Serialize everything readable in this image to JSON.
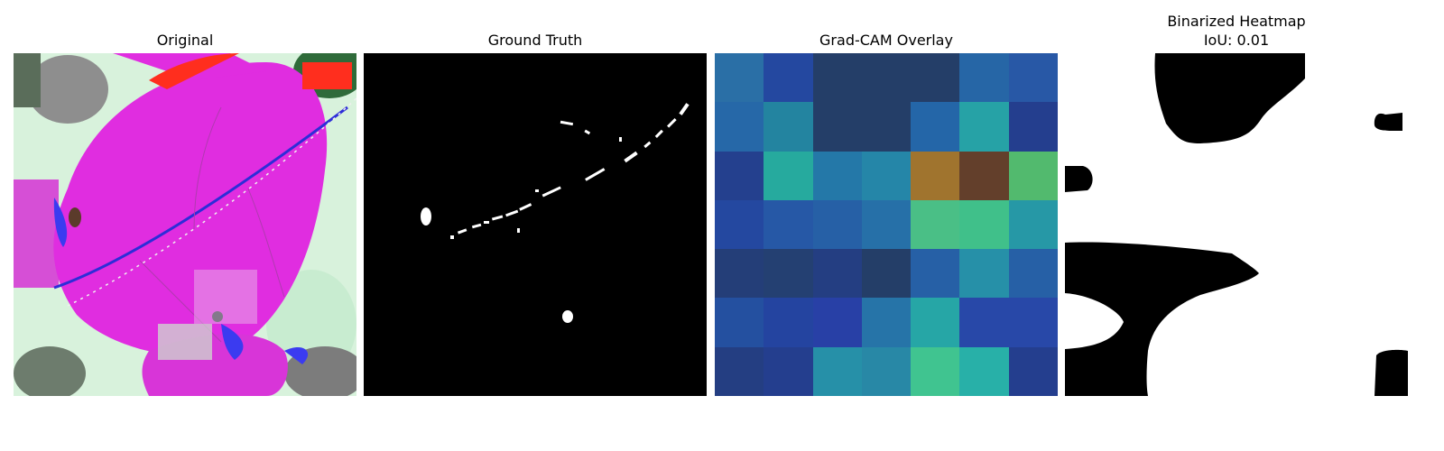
{
  "panels": [
    {
      "title": "Original",
      "subtitle": ""
    },
    {
      "title": "Ground Truth",
      "subtitle": ""
    },
    {
      "title": "Grad-CAM Overlay",
      "subtitle": ""
    },
    {
      "title": "Binarized Heatmap",
      "subtitle": "IoU: 0.01"
    }
  ],
  "gradcam_grid": [
    [
      "#2a6fa6",
      "#2448a0",
      "#243e68",
      "#243e68",
      "#243e68",
      "#2666a6",
      "#2858a6"
    ],
    [
      "#2668a8",
      "#2384a0",
      "#243e68",
      "#243e68",
      "#2466a8",
      "#26a2a6",
      "#243e8e"
    ],
    [
      "#24408e",
      "#26aa9e",
      "#2478a8",
      "#2586a8",
      "#a0742e",
      "#633f2b",
      "#52ba6e"
    ],
    [
      "#2448a0",
      "#2658a6",
      "#2660a6",
      "#2670a8",
      "#4abf86",
      "#40c08a",
      "#2698a6"
    ],
    [
      "#243e78",
      "#244072",
      "#243e82",
      "#243e68",
      "#2660a6",
      "#2690a8",
      "#2660a6"
    ],
    [
      "#2450a0",
      "#2444a0",
      "#2840a6",
      "#2674a8",
      "#26a6a6",
      "#2848a8",
      "#2848a8"
    ],
    [
      "#243e82",
      "#243e8e",
      "#2690a8",
      "#2888a6",
      "#40c490",
      "#28b0a8",
      "#243e8e"
    ]
  ]
}
